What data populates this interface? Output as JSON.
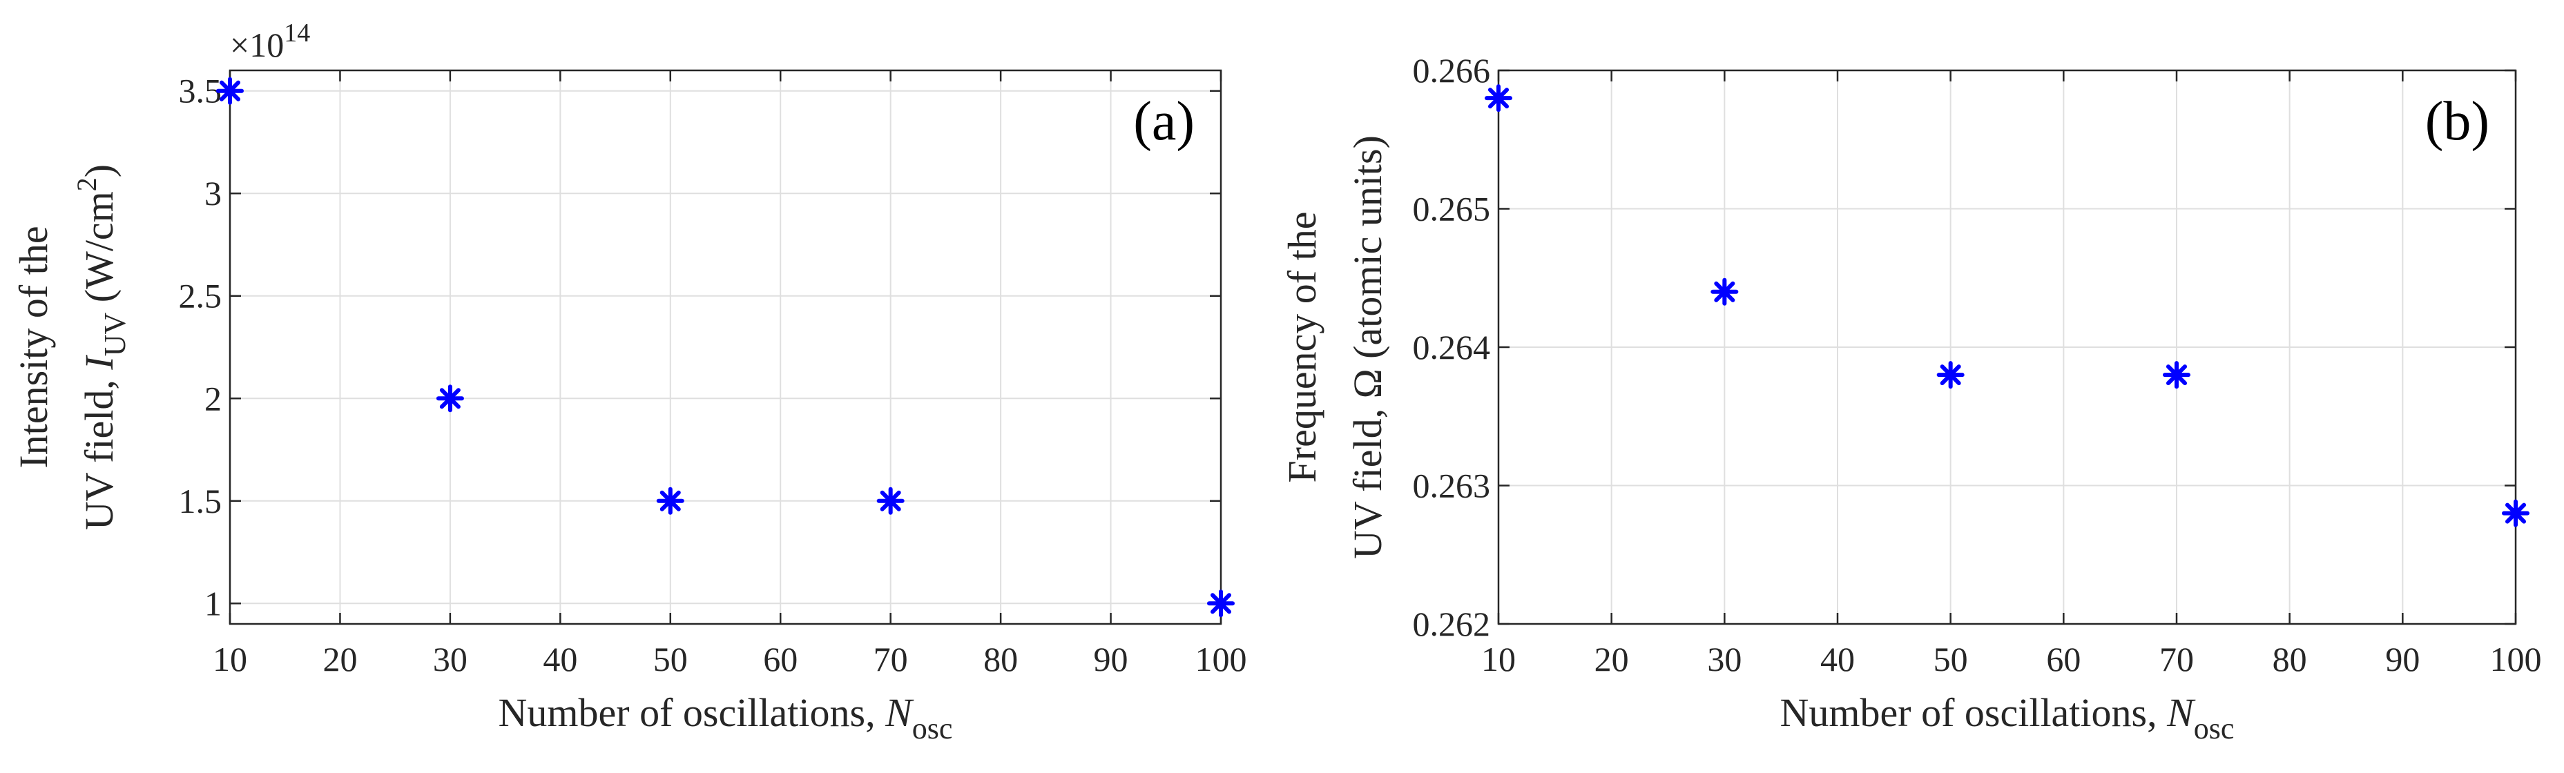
{
  "chart_data": [
    {
      "type": "scatter",
      "panel_label": "(a)",
      "x": [
        10,
        30,
        50,
        70,
        100
      ],
      "values": [
        3.5,
        2.0,
        1.5,
        1.5,
        1.0
      ],
      "xlim": [
        10,
        100
      ],
      "ylim": [
        0.9,
        3.6
      ],
      "xticks": [
        10,
        20,
        30,
        40,
        50,
        60,
        70,
        80,
        90,
        100
      ],
      "yticks": [
        1,
        1.5,
        2,
        2.5,
        3,
        3.5
      ],
      "ytick_labels": [
        "1",
        "1.5",
        "2",
        "2.5",
        "3",
        "3.5"
      ],
      "exponent": {
        "base": "×10",
        "power": "14"
      },
      "xlabel": {
        "text": "Number of oscillations, ",
        "var": "N",
        "sub": "osc"
      },
      "ylabel": {
        "line1": "Intensity of the",
        "line2_prefix": "UV field, ",
        "var": "I",
        "sub": "UV",
        "unit_pre": " (W/cm",
        "unit_sup": "2",
        "unit_post": ")"
      },
      "marker": "asterisk",
      "color": "#0000FF",
      "grid": true
    },
    {
      "type": "scatter",
      "panel_label": "(b)",
      "x": [
        10,
        30,
        50,
        70,
        100
      ],
      "values": [
        0.2658,
        0.2644,
        0.2638,
        0.2638,
        0.2628
      ],
      "xlim": [
        10,
        100
      ],
      "ylim": [
        0.262,
        0.266
      ],
      "xticks": [
        10,
        20,
        30,
        40,
        50,
        60,
        70,
        80,
        90,
        100
      ],
      "yticks": [
        0.262,
        0.263,
        0.264,
        0.265,
        0.266
      ],
      "ytick_labels": [
        "0.262",
        "0.263",
        "0.264",
        "0.265",
        "0.266"
      ],
      "xlabel": {
        "text": "Number of oscillations, ",
        "var": "N",
        "sub": "osc"
      },
      "ylabel": {
        "line1": "Frequency of the",
        "line2": "UV field, Ω (atomic units)"
      },
      "marker": "asterisk",
      "color": "#0000FF",
      "grid": true
    }
  ]
}
